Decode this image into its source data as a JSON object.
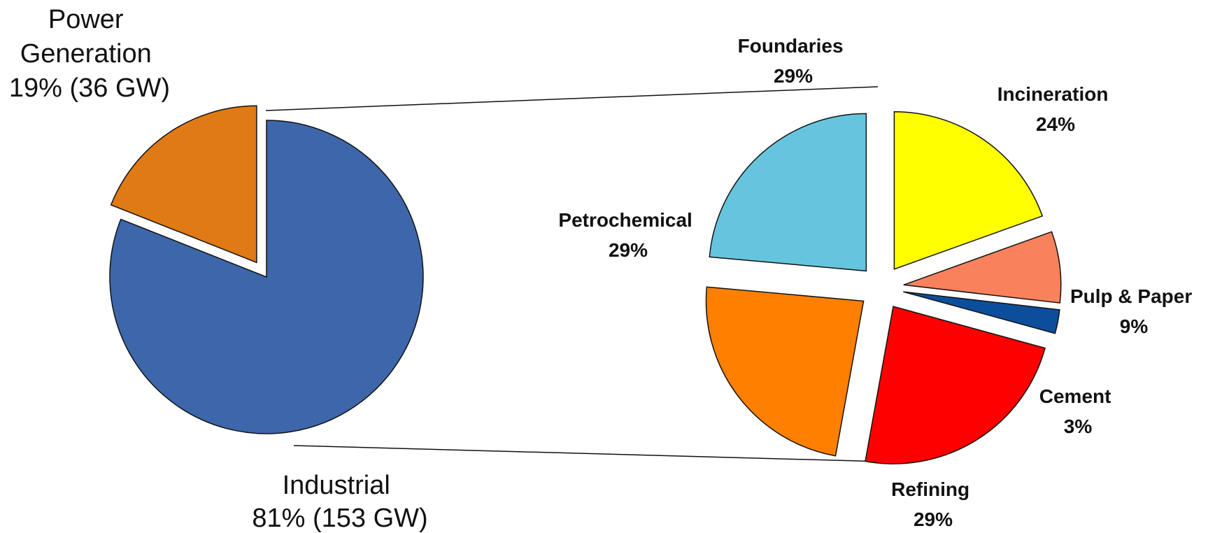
{
  "chart_data": [
    {
      "type": "pie",
      "title": "",
      "slices": [
        {
          "name": "Industrial",
          "line1": "Industrial",
          "line2": "81% (153 GW)",
          "value": 81,
          "color": "#3d67aa"
        },
        {
          "name": "Power Generation",
          "line1": "Power",
          "line2": "Generation",
          "line3": "19% (36 GW)",
          "value": 19,
          "color": "#df7a14",
          "exploded": true
        }
      ]
    },
    {
      "type": "pie",
      "title": "",
      "parent": "Industrial",
      "slices": [
        {
          "name": "Incineration",
          "line1": "Incineration",
          "line2": "24%",
          "value": 24,
          "color": "#ffff00"
        },
        {
          "name": "Pulp & Paper",
          "line1": "Pulp & Paper",
          "line2": "9%",
          "value": 9,
          "color": "#f9825c"
        },
        {
          "name": "Cement",
          "line1": "Cement",
          "line2": "3%",
          "value": 3,
          "color": "#0c4e9c"
        },
        {
          "name": "Refining",
          "line1": "Refining",
          "line2": "29%",
          "value": 29,
          "color": "#ff0000"
        },
        {
          "name": "Petrochemical",
          "line1": "Petrochemical",
          "line2": "29%",
          "value": 29,
          "color": "#ff7f00"
        },
        {
          "name": "Foundaries",
          "line1": "Foundaries",
          "line2": "29%",
          "value": 29,
          "color": "#66c5de"
        }
      ]
    }
  ]
}
